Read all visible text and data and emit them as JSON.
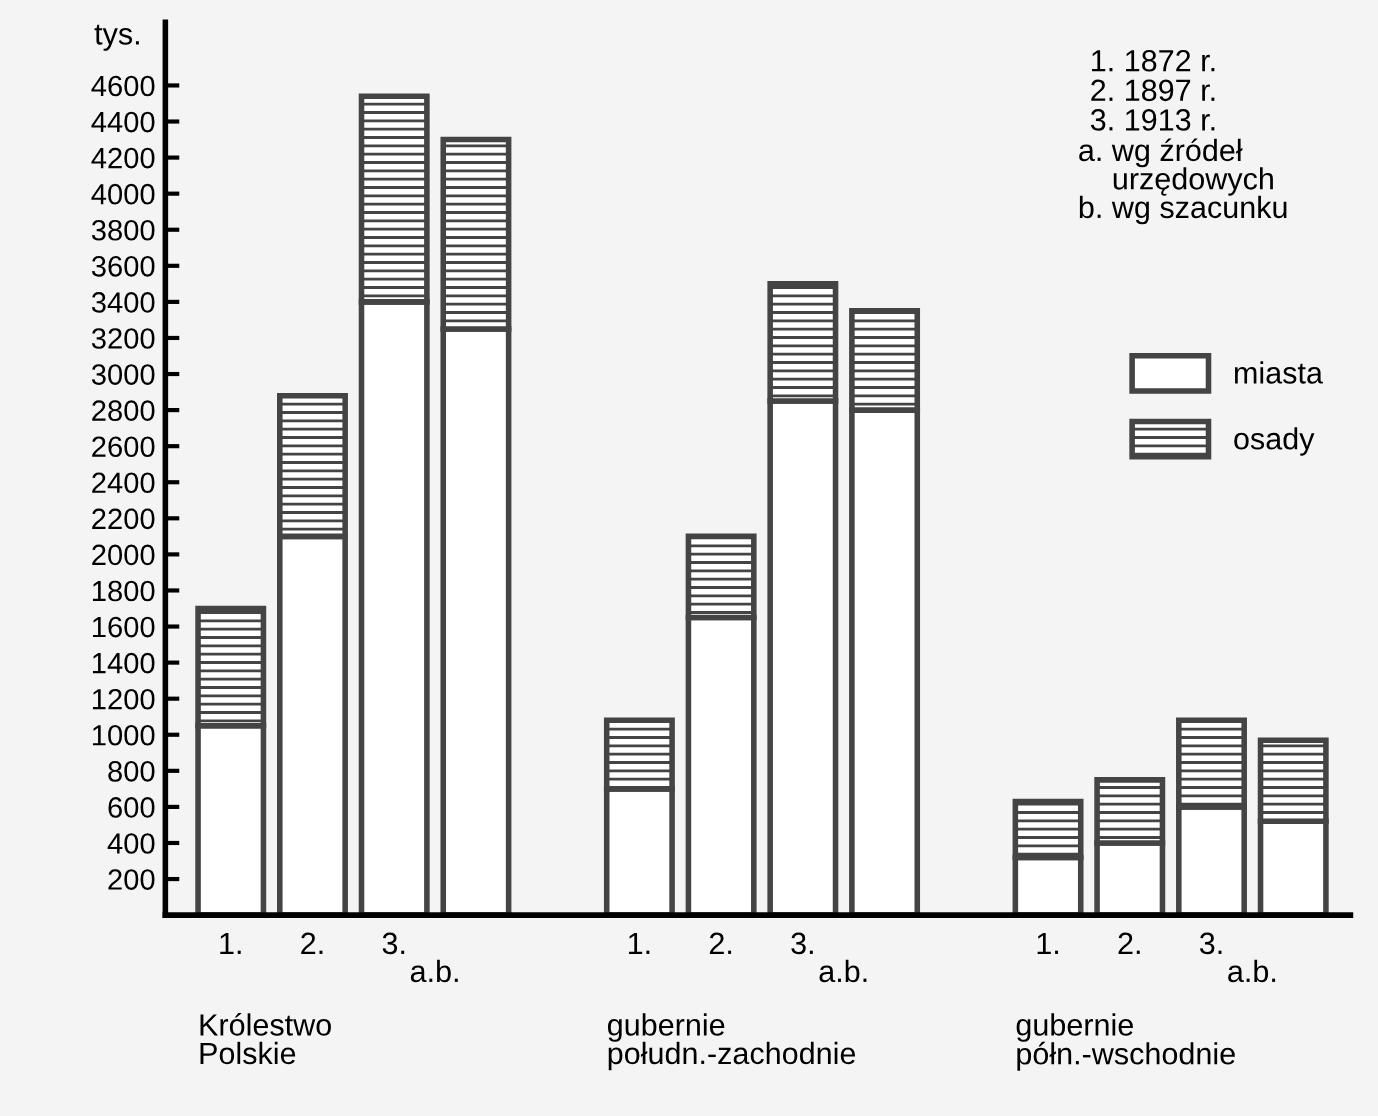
{
  "chart_data": {
    "type": "bar",
    "stacked": true,
    "ylabel": "tys.",
    "categories": [
      "1.",
      "2.",
      "3.",
      null,
      null,
      "1.",
      "2.",
      "3.",
      null,
      null,
      "1.",
      "2.",
      "3.",
      null
    ],
    "series": [
      {
        "name": "miasta",
        "color": "#444444",
        "values": [
          1050,
          2100,
          3400,
          3250,
          null,
          700,
          1650,
          2850,
          2800,
          null,
          320,
          400,
          600,
          520
        ]
      },
      {
        "name": "osady",
        "color": "#444444",
        "values": [
          650,
          780,
          1140,
          1050,
          null,
          380,
          450,
          650,
          550,
          null,
          310,
          350,
          480,
          450
        ]
      }
    ],
    "ylim": [
      0,
      4950
    ],
    "yticks": [
      200,
      400,
      600,
      800,
      1000,
      1200,
      1400,
      1600,
      1800,
      2000,
      2200,
      2400,
      2600,
      2800,
      3000,
      3200,
      3400,
      3600,
      3800,
      4000,
      4200,
      4400,
      4600
    ],
    "grid": false,
    "legend": "right",
    "annotations": [
      "a.b.",
      "a.b.",
      "a.b.",
      "Królestwo\nPolskie",
      "gubernie\npołudn.-zachodnie",
      "gubernie\npółn.-wschodnie",
      "1. 1872 r.\n2. 1897 r.\n3. 1913 r.",
      "a. wg źródeł\n    urzędowych\nb. wg szacunku"
    ]
  }
}
